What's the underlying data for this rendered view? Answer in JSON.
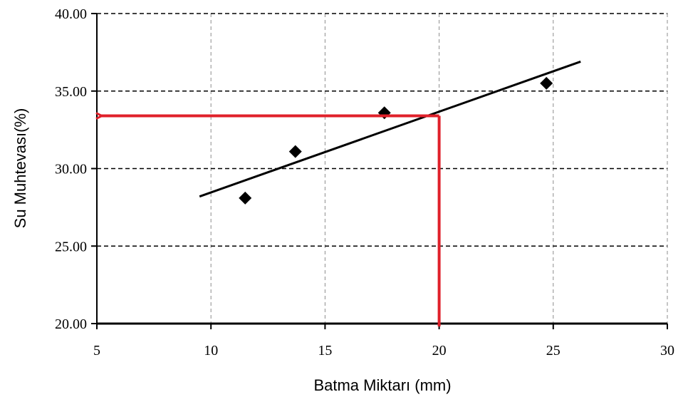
{
  "chart_data": {
    "type": "scatter",
    "xlabel": "Batma Miktarı (mm)",
    "ylabel": "Su Muhtevası(%)",
    "xlim": [
      5,
      30
    ],
    "ylim": [
      20,
      40
    ],
    "x_ticks": [
      "5",
      "10",
      "15",
      "20",
      "25",
      "30"
    ],
    "y_ticks": [
      "20.00",
      "25.00",
      "30.00",
      "35.00",
      "40.00"
    ],
    "x_tick_values": [
      5,
      10,
      15,
      20,
      25,
      30
    ],
    "y_tick_values": [
      20,
      25,
      30,
      35,
      40
    ],
    "grid": true,
    "points": [
      {
        "x": 11.5,
        "y": 28.1
      },
      {
        "x": 13.7,
        "y": 31.1
      },
      {
        "x": 17.6,
        "y": 33.6
      },
      {
        "x": 24.7,
        "y": 35.5
      }
    ],
    "trendline": {
      "x": [
        9.5,
        26.2
      ],
      "y": [
        28.2,
        36.9
      ]
    },
    "reading": {
      "x": 20,
      "y": 33.4
    },
    "colors": {
      "points": "#000000",
      "trendline": "#000000",
      "reading_arrow": "#e0202a",
      "grid": "#7f7f7f"
    }
  }
}
